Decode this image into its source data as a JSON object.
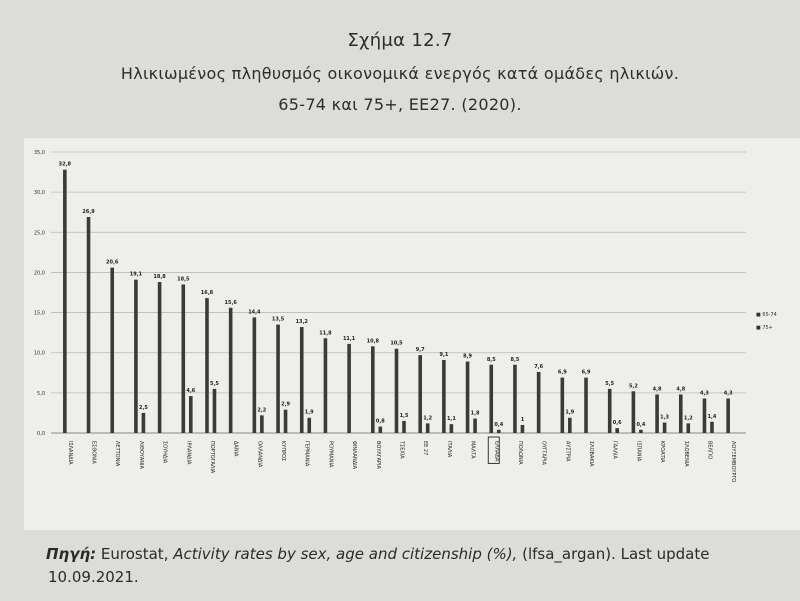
{
  "caption": {
    "number": "Σχήμα 12.7",
    "title": "Ηλικιωμένος πληθυσμός οικονομικά ενεργός κατά ομάδες ηλικιών.",
    "subtitle": "65-74 και 75+, ΕΕ27. (2020)."
  },
  "source": {
    "label": "Πηγή:",
    "text_plain_1": "Eurostat,",
    "text_italic": "Activity rates by sex, age and citizenship (%),",
    "text_plain_2": "(lfsa_argan). Last update",
    "line2": "10.09.2021."
  },
  "chart_data": {
    "type": "bar",
    "ylim": [
      0,
      35
    ],
    "yticks": [
      "0,0",
      "5,0",
      "10,0",
      "15,0",
      "20,0",
      "25,0",
      "30,0",
      "35,0"
    ],
    "ytick_values": [
      0,
      5,
      10,
      15,
      20,
      25,
      30,
      35
    ],
    "grid": true,
    "legend_position": "right",
    "highlighted_category": "ΕΛΛΑΔΑ",
    "categories": [
      "ΙΣΛΑΝΔΙΑ",
      "ΕΣΘΟΝΙΑ",
      "ΛΕΤΤΟΝΙΑ",
      "ΛΙΘΟΥΑΝΙΑ",
      "ΣΟΥΗΔΙΑ",
      "ΙΡΛΑΝΔΙΑ",
      "ΠΟΡΤΟΓΑΛΙΑ",
      "ΔΑΝΙΑ",
      "ΟΛΛΑΝΔΙΑ",
      "ΚΥΠΡΟΣ",
      "ΓΕΡΜΑΝΙΑ",
      "ΡΟΥΜΑΝΙΑ",
      "ΦΙΝΛΑΝΔΙΑ",
      "ΒΟΥΛΓΑΡΙΑ",
      "ΤΣΕΧΙΑ",
      "ΕΕ 27",
      "ΙΤΑΛΙΑ",
      "ΜΑΛΤΑ",
      "ΕΛΛΑΔΑ",
      "ΠΟΛΩΝΙΑ",
      "ΟΥΓΓΑΡΙΑ",
      "ΑΥΣΤΡΙΑ",
      "ΣΛΟΒΑΚΙΑ",
      "ΓΑΛΛΙΑ",
      "ΙΣΠΑΝΙΑ",
      "ΚΡΟΑΤΙΑ",
      "ΣΛΟΒΕΝΙΑ",
      "ΒΕΛΓΙΟ",
      "ΛΟΥΞΕΜΒΟΥΡΓΟ"
    ],
    "series": [
      {
        "name": "65-74",
        "values": [
          32.8,
          26.9,
          20.6,
          19.1,
          18.8,
          18.5,
          16.8,
          15.6,
          14.4,
          13.5,
          13.2,
          11.8,
          11.1,
          10.8,
          10.5,
          9.7,
          9.1,
          8.9,
          8.5,
          8.5,
          7.6,
          6.9,
          6.9,
          5.5,
          5.2,
          4.8,
          4.8,
          4.3,
          4.3
        ],
        "labels": [
          "32,8",
          "26,9",
          "20,6",
          "19,1",
          "18,8",
          "18,5",
          "16,8",
          "15,6",
          "14,4",
          "13,5",
          "13,2",
          "11,8",
          "11,1",
          "10,8",
          "10,5",
          "9,7",
          "9,1",
          "8,9",
          "8,5",
          "8,5",
          "7,6",
          "6,9",
          "6,9",
          "5,5",
          "5,2",
          "4,8",
          "4,8",
          "4,3",
          "4,3"
        ]
      },
      {
        "name": "75+",
        "values": [
          null,
          null,
          null,
          2.5,
          null,
          4.6,
          5.5,
          null,
          2.2,
          2.9,
          1.9,
          null,
          null,
          0.8,
          1.5,
          1.2,
          1.1,
          1.8,
          0.4,
          1,
          null,
          1.9,
          null,
          0.6,
          0.4,
          1.3,
          1.2,
          1.4,
          null
        ],
        "labels": [
          "",
          "",
          "",
          "2,5",
          "",
          "4,6",
          "5,5",
          "",
          "2,2",
          "2,9",
          "1,9",
          "",
          "",
          "0,8",
          "1,5",
          "1,2",
          "1,1",
          "1,8",
          "0,4",
          "1",
          "",
          "1,9",
          "",
          "0,6",
          "0,4",
          "1,3",
          "1,2",
          "1,4",
          ""
        ]
      }
    ],
    "legend": [
      "■ 65-74",
      "■ 75+"
    ],
    "colors": {
      "bar": "#3a3a3a",
      "grid": "#b9b9b9",
      "panel": "#eeeeeb",
      "page": "#dcdcd9"
    }
  }
}
